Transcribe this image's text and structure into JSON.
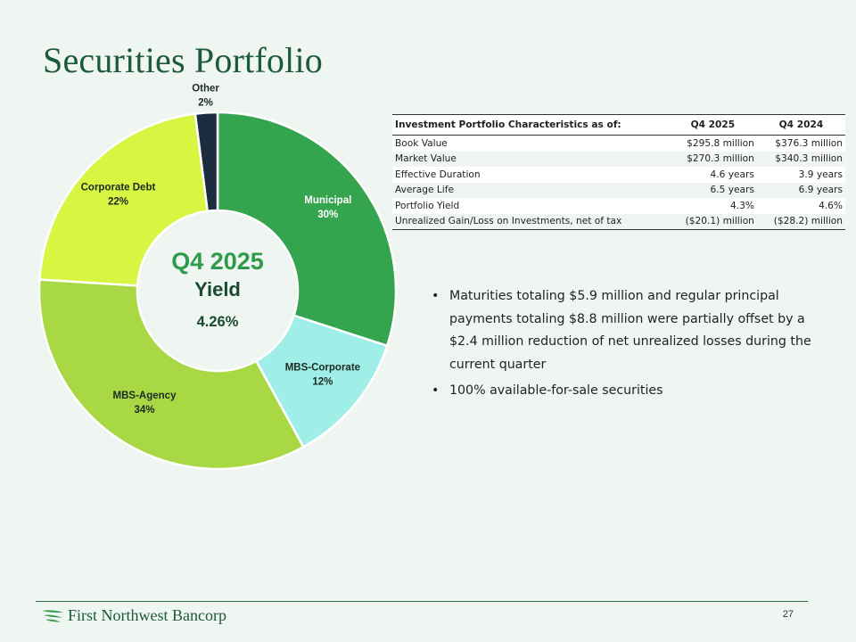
{
  "page": {
    "title": "Securities Portfolio",
    "page_number": "27"
  },
  "chart_data": {
    "type": "pie",
    "donut": true,
    "center": {
      "period": "Q4 2025",
      "label": "Yield",
      "value": "4.26%"
    },
    "slices": [
      {
        "name": "Municipal",
        "value": 30,
        "label": "30%",
        "color": "#35a44e",
        "text_color": "#ffffff"
      },
      {
        "name": "MBS-Corporate",
        "value": 12,
        "label": "12%",
        "color": "#9feee7",
        "text_color": "#1b2a22"
      },
      {
        "name": "MBS-Agency",
        "value": 34,
        "label": "34%",
        "color": "#a9d845",
        "text_color": "#1b2a22"
      },
      {
        "name": "Corporate Debt",
        "value": 22,
        "label": "22%",
        "color": "#d8f542",
        "text_color": "#1b2a22"
      },
      {
        "name": "Other",
        "value": 2,
        "label": "2%",
        "color": "#1c2c3f",
        "text_color": "#1b2a22"
      }
    ]
  },
  "table": {
    "headers": [
      "Investment Portfolio Characteristics as of:",
      "Q4 2025",
      "Q4 2024"
    ],
    "rows": [
      [
        "Book Value",
        "$295.8 million",
        "$376.3 million"
      ],
      [
        "Market Value",
        "$270.3 million",
        "$340.3 million"
      ],
      [
        "Effective Duration",
        "4.6 years",
        "3.9 years"
      ],
      [
        "Average Life",
        "6.5 years",
        "6.9 years"
      ],
      [
        "Portfolio Yield",
        "4.3%",
        "4.6%"
      ],
      [
        "Unrealized Gain/Loss on Investments, net of tax",
        "($20.1) million",
        "($28.2) million"
      ]
    ]
  },
  "bullets": {
    "marker": "•",
    "items": [
      "Maturities totaling $5.9 million and regular principal payments totaling $8.8 million were partially offset by a $2.4 million reduction of net unrealized losses during the current quarter",
      "100% available-for-sale securities"
    ]
  },
  "footer": {
    "logo_text": "First Northwest Bancorp",
    "logo_icon": "bird-wing-icon",
    "brand_color": "#1b5a3c"
  }
}
